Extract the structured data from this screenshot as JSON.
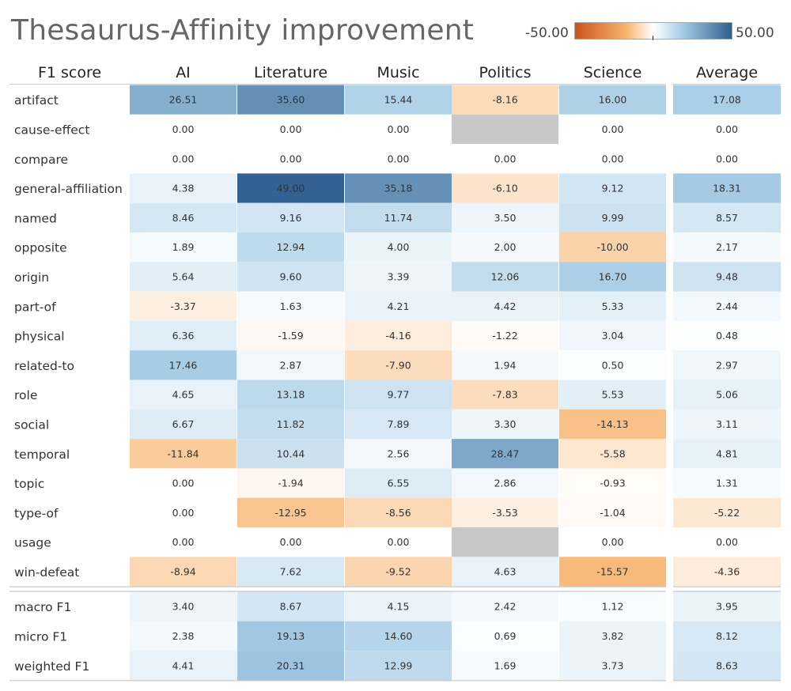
{
  "title": "Thesaurus-Affinity improvement",
  "legend": {
    "min_label": "-50.00",
    "max_label": "50.00",
    "min": -50,
    "max": 50,
    "colors": {
      "neg_strong": "#c9541e",
      "neg_mid": "#f7b26b",
      "zero": "#ffffff",
      "pos_mid": "#a7cde6",
      "pos_strong": "#2f5f8f",
      "missing": "#c8c8c8"
    }
  },
  "chart_data": {
    "type": "heatmap",
    "corner_label": "F1 score",
    "columns": [
      "AI",
      "Literature",
      "Music",
      "Politics",
      "Science"
    ],
    "summary_column": "Average",
    "rows": [
      {
        "label": "artifact",
        "values": [
          26.51,
          35.6,
          15.44,
          -8.16,
          16.0
        ],
        "average": 17.08
      },
      {
        "label": "cause-effect",
        "values": [
          0.0,
          0.0,
          0.0,
          null,
          0.0
        ],
        "average": 0.0
      },
      {
        "label": "compare",
        "values": [
          0.0,
          0.0,
          0.0,
          0.0,
          0.0
        ],
        "average": 0.0
      },
      {
        "label": "general-affiliation",
        "values": [
          4.38,
          49.0,
          35.18,
          -6.1,
          9.12
        ],
        "average": 18.31
      },
      {
        "label": "named",
        "values": [
          8.46,
          9.16,
          11.74,
          3.5,
          9.99
        ],
        "average": 8.57
      },
      {
        "label": "opposite",
        "values": [
          1.89,
          12.94,
          4.0,
          2.0,
          -10.0
        ],
        "average": 2.17
      },
      {
        "label": "origin",
        "values": [
          5.64,
          9.6,
          3.39,
          12.06,
          16.7
        ],
        "average": 9.48
      },
      {
        "label": "part-of",
        "values": [
          -3.37,
          1.63,
          4.21,
          4.42,
          5.33
        ],
        "average": 2.44
      },
      {
        "label": "physical",
        "values": [
          6.36,
          -1.59,
          -4.16,
          -1.22,
          3.04
        ],
        "average": 0.48
      },
      {
        "label": "related-to",
        "values": [
          17.46,
          2.87,
          -7.9,
          1.94,
          0.5
        ],
        "average": 2.97
      },
      {
        "label": "role",
        "values": [
          4.65,
          13.18,
          9.77,
          -7.83,
          5.53
        ],
        "average": 5.06
      },
      {
        "label": "social",
        "values": [
          6.67,
          11.82,
          7.89,
          3.3,
          -14.13
        ],
        "average": 3.11
      },
      {
        "label": "temporal",
        "values": [
          -11.84,
          10.44,
          2.56,
          28.47,
          -5.58
        ],
        "average": 4.81
      },
      {
        "label": "topic",
        "values": [
          0.0,
          -1.94,
          6.55,
          2.86,
          -0.93
        ],
        "average": 1.31
      },
      {
        "label": "type-of",
        "values": [
          0.0,
          -12.95,
          -8.56,
          -3.53,
          -1.04
        ],
        "average": -5.22
      },
      {
        "label": "usage",
        "values": [
          0.0,
          0.0,
          0.0,
          null,
          0.0
        ],
        "average": 0.0
      },
      {
        "label": "win-defeat",
        "values": [
          -8.94,
          7.62,
          -9.52,
          4.63,
          -15.57
        ],
        "average": -4.36
      }
    ],
    "summary_rows": [
      {
        "label": "macro F1",
        "values": [
          3.4,
          8.67,
          4.15,
          2.42,
          1.12
        ],
        "average": 3.95
      },
      {
        "label": "micro F1",
        "values": [
          2.38,
          19.13,
          14.6,
          0.69,
          3.82
        ],
        "average": 8.12
      },
      {
        "label": "weighted F1",
        "values": [
          4.41,
          20.31,
          12.99,
          1.69,
          3.73
        ],
        "average": 8.63
      }
    ]
  }
}
